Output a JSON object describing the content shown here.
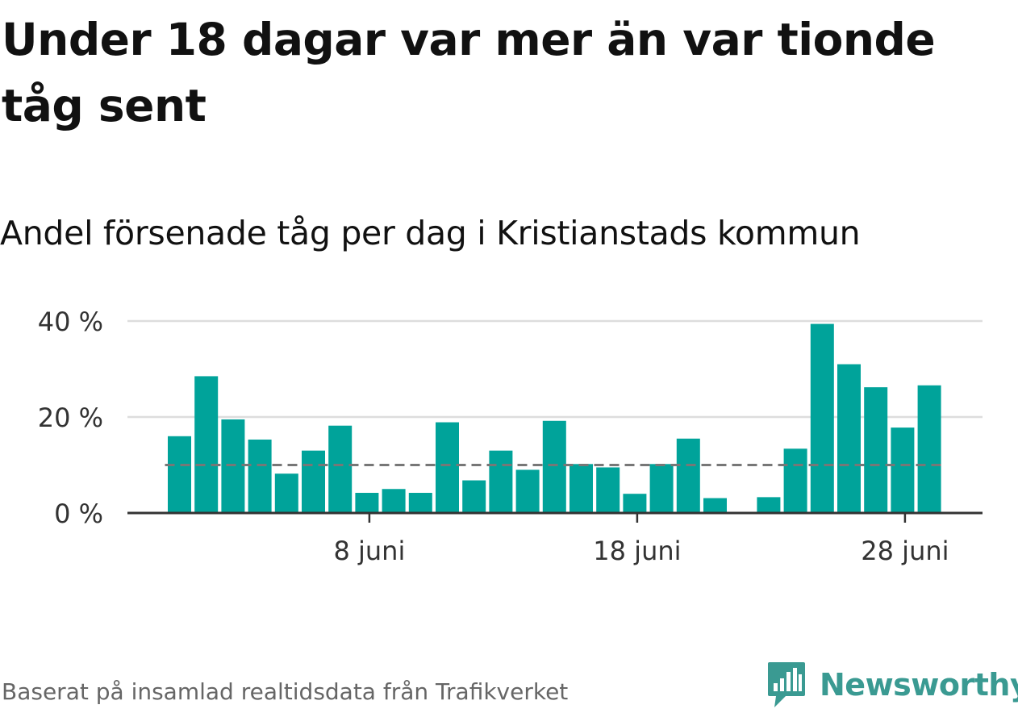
{
  "title": "Under 18 dagar var mer än var tionde tåg sent",
  "subtitle": "Andel försenade tåg per dag i Kristianstads kommun",
  "footer": "Baserat på insamlad realtidsdata från Trafikverket",
  "brand": {
    "name": "Newsworthy",
    "icon": "newsworthy-chart-bubble-icon",
    "color": "#3a9a92"
  },
  "colors": {
    "bar": "#00a39a",
    "reference_line": "#777777",
    "grid": "#dddddd",
    "axis": "#333333",
    "tick_text": "#333333"
  },
  "chart_data": {
    "type": "bar",
    "x_unit": "day of June",
    "x": [
      1,
      2,
      3,
      4,
      5,
      6,
      7,
      8,
      9,
      10,
      11,
      12,
      13,
      14,
      15,
      16,
      17,
      18,
      19,
      20,
      21,
      22,
      23,
      24,
      25,
      26,
      27,
      28,
      29
    ],
    "values": [
      16,
      28.5,
      19.5,
      15.3,
      8.2,
      13,
      18.2,
      4.2,
      5,
      4.2,
      18.9,
      6.8,
      13,
      9,
      19.2,
      10.2,
      9.5,
      4,
      10.2,
      15.5,
      3.1,
      0,
      3.3,
      13.4,
      39.4,
      31,
      26.2,
      17.8,
      26.6
    ],
    "reference_line": 10,
    "ylim": [
      0,
      40
    ],
    "y_ticks": [
      {
        "value": 0,
        "label": "0 %"
      },
      {
        "value": 20,
        "label": "20 %"
      },
      {
        "value": 40,
        "label": "40 %"
      }
    ],
    "x_ticks": [
      {
        "value": 8,
        "label": "8 juni"
      },
      {
        "value": 18,
        "label": "18 juni"
      },
      {
        "value": 28,
        "label": "28 juni"
      }
    ],
    "grid": true,
    "title": "Under 18 dagar var mer än var tionde tåg sent",
    "subtitle": "Andel försenade tåg per dag i Kristianstads kommun",
    "xlabel": "",
    "ylabel": ""
  }
}
